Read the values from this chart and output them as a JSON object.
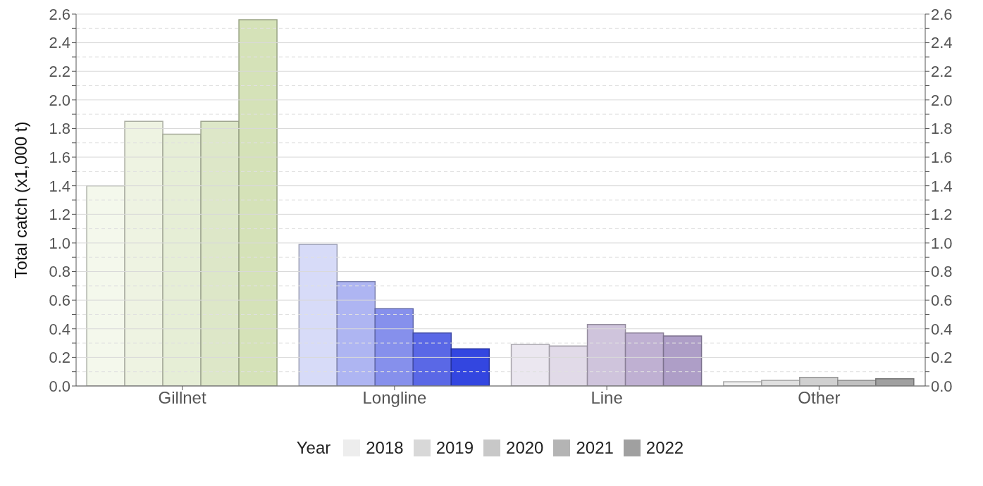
{
  "chart_data": {
    "type": "bar",
    "ylabel": "Total catch (x1,000 t)",
    "legend_title": "Year",
    "legend": "bottom",
    "grid": true,
    "categories": [
      "Gillnet",
      "Longline",
      "Line",
      "Other"
    ],
    "series": [
      {
        "name": "2018",
        "color": "#ededed",
        "values": [
          1.4,
          0.99,
          0.29,
          0.03
        ],
        "colors": [
          "#f4f8ec",
          "#d7dbf8",
          "#ebe7f0",
          "#f0f0f0"
        ]
      },
      {
        "name": "2019",
        "color": "#d8d8d8",
        "values": [
          1.85,
          0.73,
          0.28,
          0.04
        ],
        "colors": [
          "#eef3e2",
          "#aeb5f2",
          "#e1dae8",
          "#e0e0e0"
        ]
      },
      {
        "name": "2020",
        "color": "#c8c8c8",
        "values": [
          1.76,
          0.54,
          0.43,
          0.06
        ],
        "colors": [
          "#e6eed6",
          "#8690ec",
          "#cfc4dc",
          "#d0d0d0"
        ]
      },
      {
        "name": "2021",
        "color": "#b4b4b4",
        "values": [
          1.85,
          0.37,
          0.37,
          0.04
        ],
        "colors": [
          "#dde7c8",
          "#5a68e6",
          "#bfb0d2",
          "#c0c0c0"
        ]
      },
      {
        "name": "2022",
        "color": "#a0a0a0",
        "values": [
          2.56,
          0.26,
          0.35,
          0.05
        ],
        "colors": [
          "#d5e2b8",
          "#3346e0",
          "#ae9ec7",
          "#a0a0a0"
        ]
      }
    ],
    "ylim": [
      0,
      2.6
    ],
    "yticks": [
      {
        "value": 0,
        "label": "0.0"
      },
      {
        "value": 0.1,
        "label": null
      },
      0.2,
      {
        "value": 0.3,
        "label": null
      },
      0.4,
      {
        "value": 0.5,
        "label": null
      },
      0.6,
      {
        "value": 0.7,
        "label": null
      },
      0.8,
      {
        "value": 0.9,
        "label": null
      },
      {
        "value": 1,
        "label": "1.0"
      },
      {
        "value": 1.1,
        "label": null
      },
      1.2,
      {
        "value": 1.3,
        "label": null
      },
      1.4,
      {
        "value": 1.5,
        "label": null
      },
      1.6,
      {
        "value": 1.7,
        "label": null
      },
      1.8,
      {
        "value": 1.9,
        "label": null
      },
      {
        "value": 2,
        "label": "2.0"
      },
      {
        "value": 2.1,
        "label": null
      },
      2.2,
      {
        "value": 2.3,
        "label": null
      },
      2.4,
      {
        "value": 2.5,
        "label": null
      },
      2.6
    ],
    "y2lim": [
      0,
      2.6
    ],
    "y2ticks": [
      {
        "value": 0,
        "label": "0.0"
      },
      {
        "value": 0.1,
        "label": null
      },
      0.2,
      {
        "value": 0.3,
        "label": null
      },
      0.4,
      {
        "value": 0.5,
        "label": null
      },
      0.6,
      {
        "value": 0.7,
        "label": null
      },
      0.8,
      {
        "value": 0.9,
        "label": null
      },
      {
        "value": 1,
        "label": "1.0"
      },
      {
        "value": 1.1,
        "label": null
      },
      1.2,
      {
        "value": 1.3,
        "label": null
      },
      1.4,
      {
        "value": 1.5,
        "label": null
      },
      1.6,
      {
        "value": 1.7,
        "label": null
      },
      1.8,
      {
        "value": 1.9,
        "label": null
      },
      {
        "value": 2,
        "label": "2.0"
      },
      {
        "value": 2.1,
        "label": null
      },
      2.2,
      {
        "value": 2.3,
        "label": null
      },
      2.4,
      {
        "value": 2.5,
        "label": null
      },
      2.6
    ]
  }
}
